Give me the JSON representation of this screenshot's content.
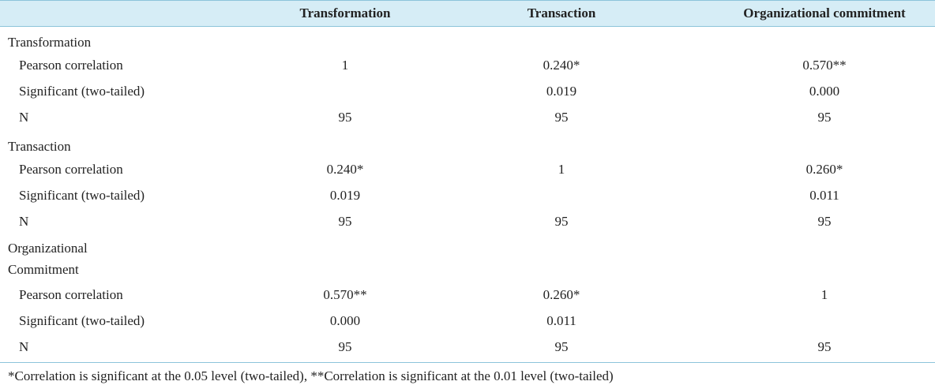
{
  "table": {
    "columns": [
      "Transformation",
      "Transaction",
      "Organizational commitment"
    ],
    "groups": [
      {
        "label": "Transformation",
        "rows": [
          {
            "label": "Pearson correlation",
            "cells": [
              "1",
              "0.240*",
              "0.570**"
            ]
          },
          {
            "label": "Significant (two-tailed)",
            "cells": [
              null,
              "0.019",
              "0.000"
            ]
          },
          {
            "label": "N",
            "cells": [
              "95",
              "95",
              "95"
            ]
          }
        ]
      },
      {
        "label": "Transaction",
        "rows": [
          {
            "label": "Pearson correlation",
            "cells": [
              "0.240*",
              "1",
              "0.260*"
            ]
          },
          {
            "label": "Significant (two-tailed)",
            "cells": [
              "0.019",
              null,
              "0.011"
            ]
          },
          {
            "label": "N",
            "cells": [
              "95",
              "95",
              "95"
            ]
          }
        ]
      },
      {
        "label": "Organizational Commitment",
        "rows": [
          {
            "label": "Pearson correlation",
            "cells": [
              "0.570**",
              "0.260*",
              "1"
            ]
          },
          {
            "label": "Significant (two-tailed)",
            "cells": [
              "0.000",
              "0.011",
              null
            ]
          },
          {
            "label": "N",
            "cells": [
              "95",
              "95",
              "95"
            ]
          }
        ]
      }
    ],
    "footnote": "*Correlation is significant at the 0.05 level (two-tailed), **Correlation is significant at the 0.01 level (two-tailed)"
  }
}
